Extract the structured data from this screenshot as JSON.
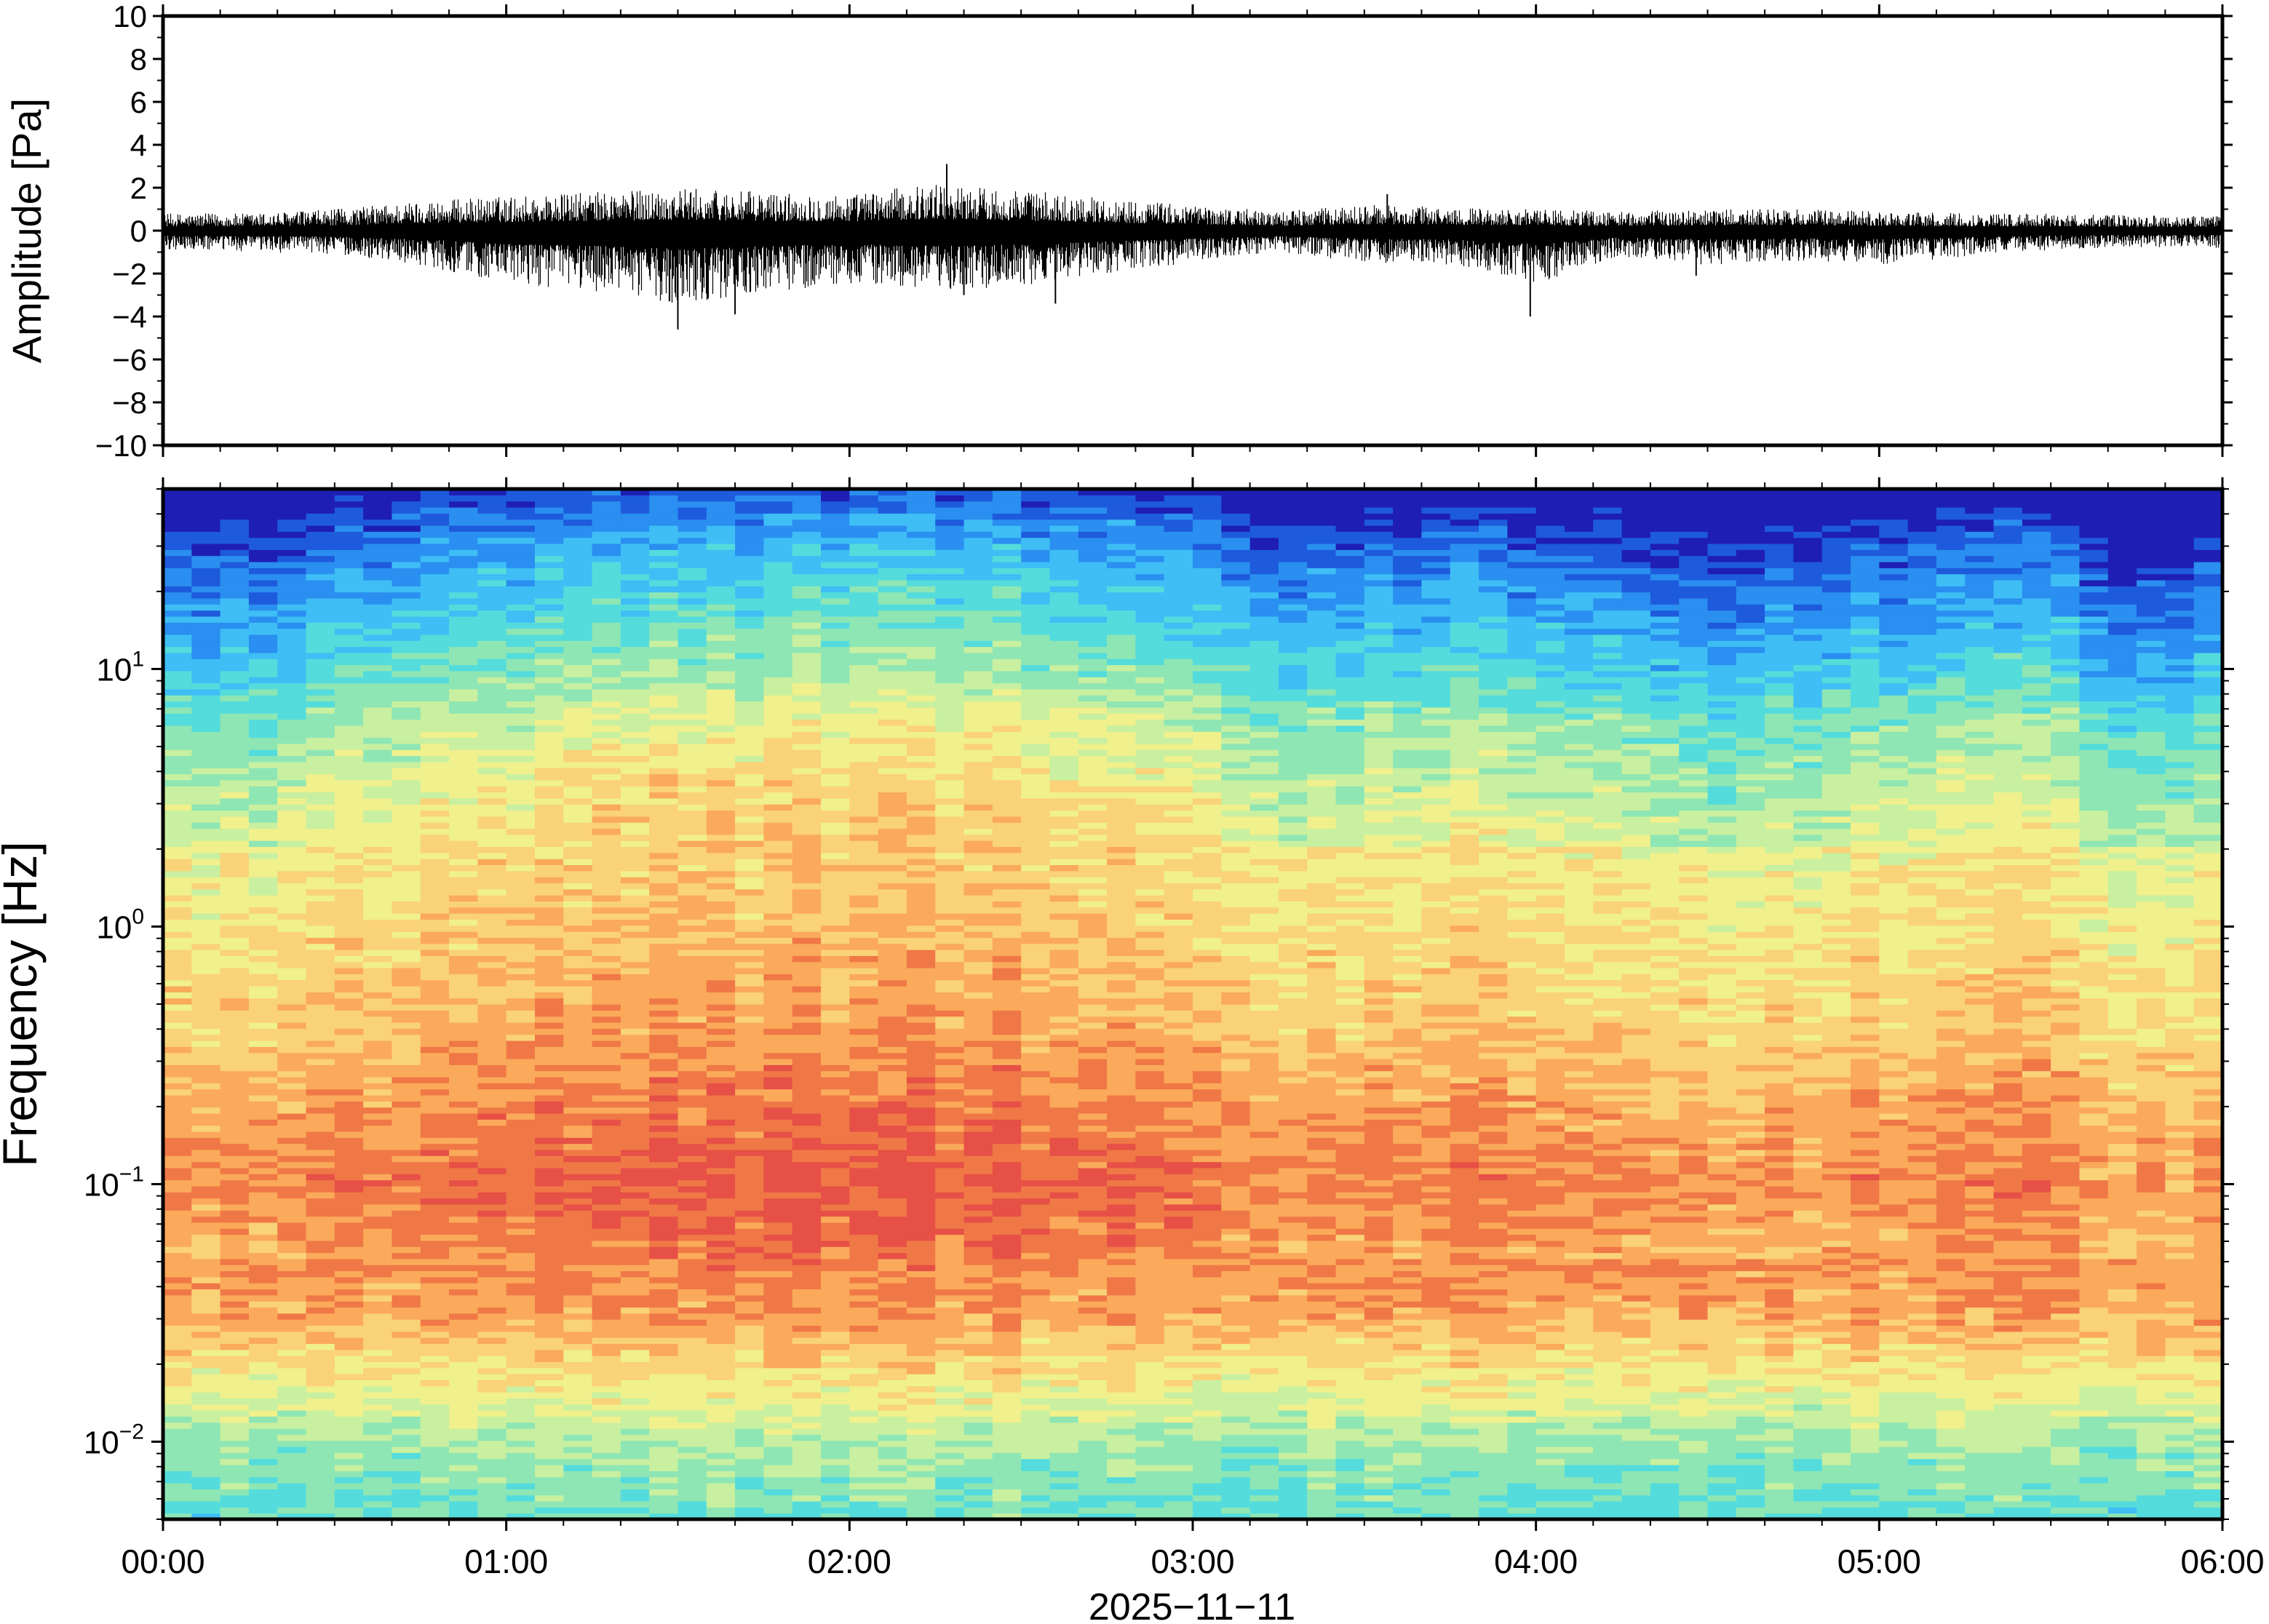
{
  "chart_data": [
    {
      "type": "line",
      "ylabel": "Amplitude [Pa]",
      "ylim": [
        -10,
        10
      ],
      "yticks": [
        -10,
        -8,
        -6,
        -4,
        -2,
        0,
        2,
        4,
        6,
        8,
        10
      ],
      "ytick_labels": [
        "−10",
        "−8",
        "−6",
        "−4",
        "−2",
        "0",
        "2",
        "4",
        "6",
        "8",
        "10"
      ],
      "xlim": [
        "2025-11-11T00:00",
        "2025-11-11T06:00"
      ],
      "series": [
        {
          "x": [
            "00:00",
            "00:15",
            "00:30",
            "00:45",
            "01:00",
            "01:15",
            "01:30",
            "01:45",
            "02:00",
            "02:15",
            "02:30",
            "02:45",
            "03:00",
            "03:15",
            "03:30",
            "03:45",
            "04:00",
            "04:15",
            "04:30",
            "04:45",
            "05:00",
            "05:15",
            "05:30",
            "05:45",
            "06:00"
          ],
          "envelope_max": [
            0.8,
            0.8,
            1.0,
            1.4,
            1.6,
            1.8,
            2.0,
            1.8,
            1.7,
            2.2,
            1.9,
            1.5,
            1.2,
            0.9,
            1.2,
            1.1,
            1.0,
            0.9,
            1.0,
            1.0,
            0.9,
            0.8,
            0.8,
            0.7,
            0.7
          ],
          "envelope_min": [
            -0.9,
            -1.0,
            -1.1,
            -1.6,
            -2.5,
            -2.8,
            -3.4,
            -2.9,
            -2.5,
            -2.8,
            -2.6,
            -2.0,
            -1.5,
            -1.0,
            -1.5,
            -1.6,
            -2.5,
            -1.2,
            -1.6,
            -1.4,
            -1.6,
            -1.2,
            -0.9,
            -0.8,
            -0.8
          ]
        }
      ],
      "spikes": [
        {
          "x": "01:30",
          "y": -4.6
        },
        {
          "x": "01:40",
          "y": -3.9
        },
        {
          "x": "02:17",
          "y": 3.1
        },
        {
          "x": "02:20",
          "y": -3.0
        },
        {
          "x": "02:36",
          "y": -3.4
        },
        {
          "x": "03:34",
          "y": 1.7
        },
        {
          "x": "03:59",
          "y": -4.0
        },
        {
          "x": "04:28",
          "y": -2.1
        }
      ]
    },
    {
      "type": "heatmap",
      "ylabel": "Frequency [Hz]",
      "yscale": "log",
      "ylim": [
        0.005,
        50
      ],
      "ytick_labels": [
        {
          "value": 0.01,
          "base": "10",
          "exp": "−2"
        },
        {
          "value": 0.1,
          "base": "10",
          "exp": "−1"
        },
        {
          "value": 1,
          "base": "10",
          "exp": "0"
        },
        {
          "value": 10,
          "base": "10",
          "exp": "1"
        }
      ],
      "xlim": [
        "2025-11-11T00:00",
        "2025-11-11T06:00"
      ],
      "xlabel": "2025−11−11",
      "xtick_labels": [
        "00:00",
        "01:00",
        "02:00",
        "03:00",
        "04:00",
        "05:00",
        "06:00"
      ],
      "colormap": [
        "#1e1eb4",
        "#1e5adc",
        "#2a8ff0",
        "#3ebef5",
        "#54dcdc",
        "#8ee6b4",
        "#c8f0a0",
        "#f0f08c",
        "#fad278",
        "#faaa5a",
        "#f07846",
        "#e65046"
      ],
      "level_scale": [
        0,
        11
      ],
      "profile_log10_freq": [
        -2.3,
        -2.0,
        -1.7,
        -1.5,
        -1.2,
        -1.0,
        -0.7,
        -0.4,
        0.0,
        0.4,
        0.8,
        1.0,
        1.3,
        1.55,
        1.7
      ],
      "profile_levels": [
        4.5,
        5.6,
        7.8,
        9.2,
        10.0,
        10.5,
        9.8,
        9.0,
        8.3,
        7.8,
        6.4,
        5.0,
        3.5,
        2.0,
        0.5
      ],
      "time_modulation": {
        "x": [
          "00:00",
          "00:15",
          "00:30",
          "00:45",
          "01:00",
          "01:15",
          "01:30",
          "01:45",
          "02:00",
          "02:15",
          "02:30",
          "02:45",
          "03:00",
          "03:15",
          "03:30",
          "03:45",
          "04:00",
          "04:15",
          "04:30",
          "04:45",
          "05:00",
          "05:15",
          "05:30",
          "05:45",
          "06:00"
        ],
        "offset": [
          -1.6,
          -1.8,
          -0.9,
          -0.6,
          -0.2,
          0.2,
          0.4,
          0.4,
          0.4,
          0.4,
          0.3,
          0.2,
          -0.2,
          -1.5,
          -1.2,
          -1.0,
          -1.2,
          -1.4,
          -2.4,
          -1.8,
          -1.6,
          -1.2,
          -1.2,
          -2.6,
          -2.0
        ]
      }
    }
  ]
}
